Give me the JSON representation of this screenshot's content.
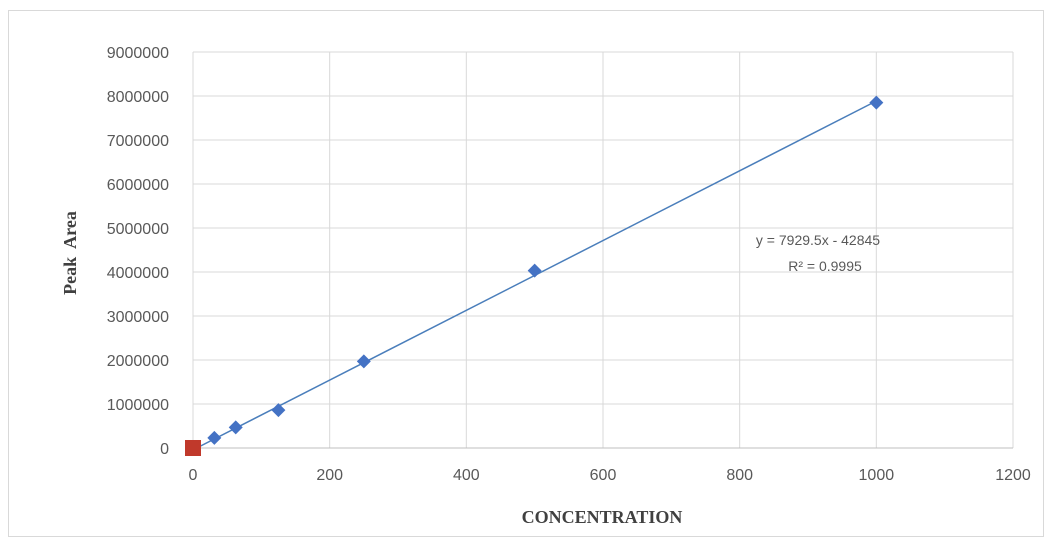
{
  "chart_data": {
    "type": "scatter",
    "title": "",
    "xlabel": "CONCENTRATION",
    "ylabel": "Peak  Area",
    "xlim": [
      0,
      1200
    ],
    "ylim": [
      0,
      9000000
    ],
    "x_ticks": [
      "0",
      "200",
      "400",
      "600",
      "800",
      "1000",
      "1200"
    ],
    "y_ticks": [
      "0",
      "1000000",
      "2000000",
      "3000000",
      "4000000",
      "5000000",
      "6000000",
      "7000000",
      "8000000",
      "9000000"
    ],
    "grid": true,
    "legend": "none",
    "series": [
      {
        "marker": "diamond",
        "color": "#4472c4",
        "x": [
          31.25,
          62.5,
          125,
          250,
          500,
          1000
        ],
        "y": [
          230000,
          470000,
          860000,
          1970000,
          4030000,
          7850000
        ]
      },
      {
        "marker": "square",
        "color": "#c0392b",
        "x": [
          0
        ],
        "y": [
          0
        ]
      }
    ],
    "trendline": {
      "type": "linear",
      "slope": 7929.5,
      "intercept": -42845,
      "color": "#4a7ebb",
      "equation_label": "y = 7929.5x - 42845",
      "r2_label": "R² = 0.9995"
    }
  }
}
